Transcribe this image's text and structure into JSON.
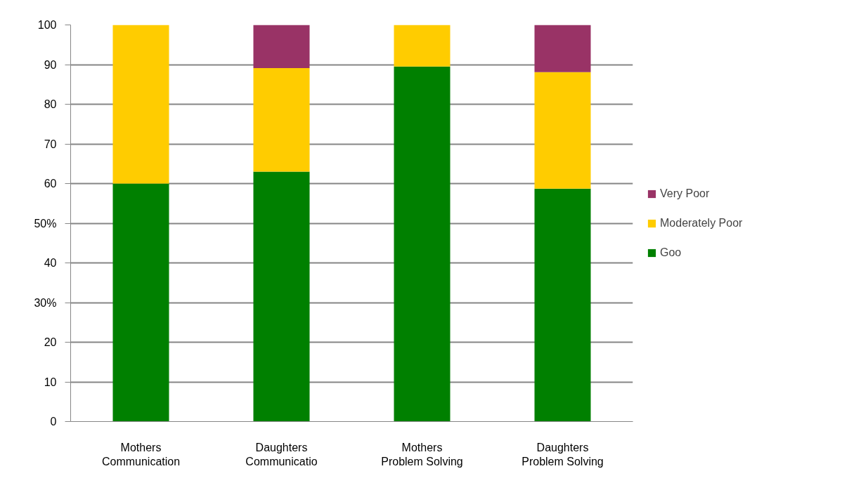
{
  "chart_data": {
    "type": "bar",
    "stacked": true,
    "categories": [
      "Mothers\nCommunication",
      "Daughters\nCommunicatio",
      "Mothers\nProblem Solving",
      "Daughters\nProblem Solving"
    ],
    "series": [
      {
        "name": "Goo",
        "color": "#008000",
        "values": [
          60,
          63,
          89.5,
          58.7
        ]
      },
      {
        "name": "Moderately Poor",
        "color": "#ffcc00",
        "values": [
          40,
          26.1,
          10.5,
          29.4
        ]
      },
      {
        "name": "Very Poor",
        "color": "#993366",
        "values": [
          0,
          10.9,
          0,
          11.9
        ]
      }
    ],
    "ylim": [
      0,
      100
    ],
    "yticks": [
      0,
      10,
      20,
      {
        "value": 30,
        "label": "30%"
      },
      40,
      {
        "value": 50,
        "label": "50%"
      },
      60,
      70,
      80,
      90,
      100
    ],
    "grid": "y",
    "legend": "right"
  }
}
